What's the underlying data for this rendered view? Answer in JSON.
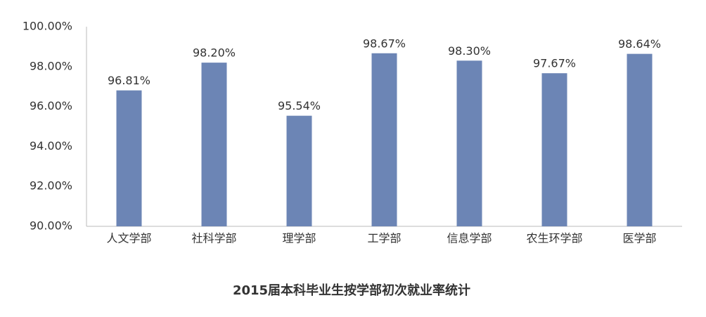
{
  "chart_data": {
    "type": "bar",
    "title": "2015届本科毕业生按学部初次就业率统计",
    "categories": [
      "人文学部",
      "社科学部",
      "理学部",
      "工学部",
      "信息学部",
      "农生环学部",
      "医学部"
    ],
    "values": [
      96.81,
      98.2,
      95.54,
      98.67,
      98.3,
      97.67,
      98.64
    ],
    "value_labels": [
      "96.81%",
      "98.20%",
      "95.54%",
      "98.67%",
      "98.30%",
      "97.67%",
      "98.64%"
    ],
    "color": "#6c85b5",
    "ylim": [
      90,
      100
    ],
    "yticks": [
      {
        "value": 90,
        "label": "90.00%"
      },
      {
        "value": 92,
        "label": "92.00%"
      },
      {
        "value": 94,
        "label": "94.00%"
      },
      {
        "value": 96,
        "label": "96.00%"
      },
      {
        "value": 98,
        "label": "98.00%"
      },
      {
        "value": 100,
        "label": "100.00%"
      }
    ],
    "grid": false
  }
}
